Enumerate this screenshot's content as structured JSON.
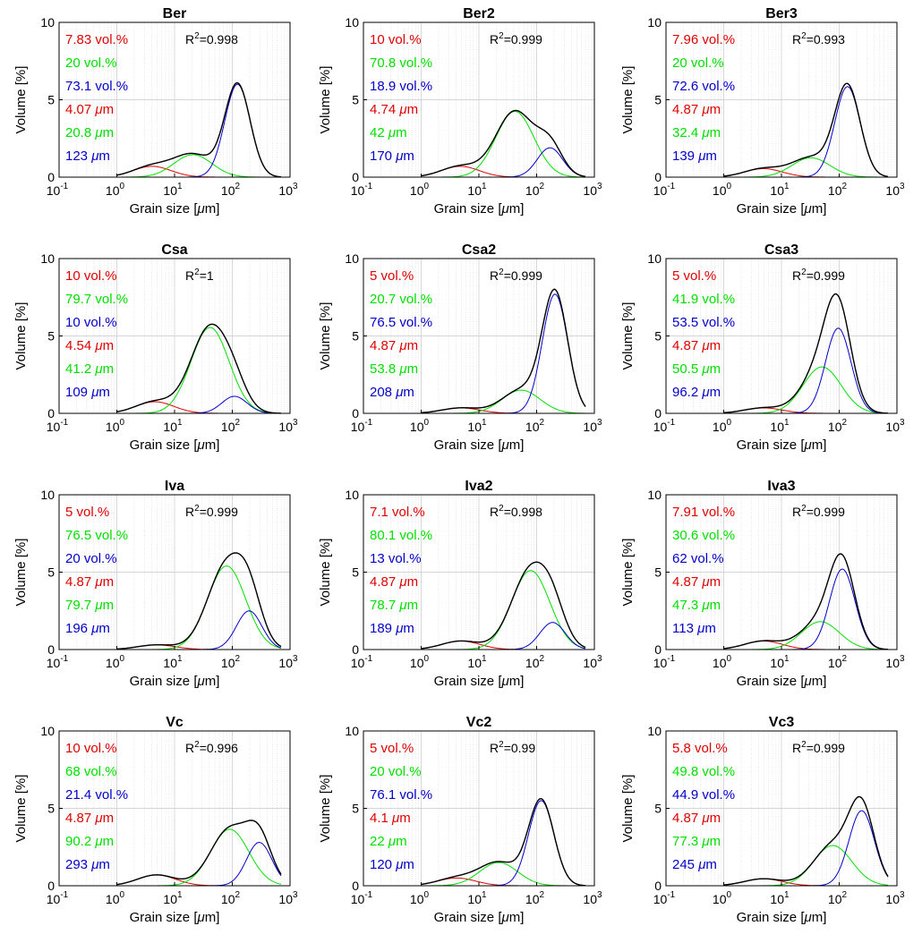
{
  "figure": {
    "xlabel": "Grain size [",
    "xlabel_mu": "μ",
    "xlabel_unit": "m]",
    "ylabel": "Volume [%]",
    "vol_suffix": " vol.%",
    "um_unit": "m",
    "r2_label": "R",
    "r2_sup": "2",
    "x_ticks": [
      {
        "base": "10",
        "exp": "-1"
      },
      {
        "base": "10",
        "exp": "0"
      },
      {
        "base": "10",
        "exp": "1"
      },
      {
        "base": "10",
        "exp": "2"
      },
      {
        "base": "10",
        "exp": "3"
      }
    ],
    "y_ticks": [
      "0",
      "5",
      "10"
    ],
    "colors": {
      "fine": "#e00000",
      "medium": "#00e000",
      "coarse": "#0000cc",
      "total": "#000000"
    }
  },
  "chart_data": [
    {
      "type": "line",
      "title": "Ber",
      "r2": "0.998",
      "xlim": [
        0.1,
        1000
      ],
      "ylim": [
        0,
        10
      ],
      "xscale": "log",
      "components": [
        {
          "vol": "7.83",
          "mode": "4.07"
        },
        {
          "vol": "20",
          "mode": "20.8"
        },
        {
          "vol": "73.1",
          "mode": "123"
        }
      ],
      "peaks": [
        0.7,
        1.45,
        6.0
      ]
    },
    {
      "type": "line",
      "title": "Ber2",
      "r2": "0.999",
      "xlim": [
        0.1,
        1000
      ],
      "ylim": [
        0,
        10
      ],
      "xscale": "log",
      "components": [
        {
          "vol": "10",
          "mode": "4.74"
        },
        {
          "vol": "70.8",
          "mode": "42"
        },
        {
          "vol": "18.9",
          "mode": "170"
        }
      ],
      "peaks": [
        0.7,
        4.25,
        1.9
      ]
    },
    {
      "type": "line",
      "title": "Ber3",
      "r2": "0.993",
      "xlim": [
        0.1,
        1000
      ],
      "ylim": [
        0,
        10
      ],
      "xscale": "log",
      "components": [
        {
          "vol": "7.96",
          "mode": "4.87"
        },
        {
          "vol": "20",
          "mode": "32.4"
        },
        {
          "vol": "72.6",
          "mode": "139"
        }
      ],
      "peaks": [
        0.55,
        1.25,
        5.85
      ]
    },
    {
      "type": "line",
      "title": "Csa",
      "r2": "1",
      "xlim": [
        0.1,
        1000
      ],
      "ylim": [
        0,
        10
      ],
      "xscale": "log",
      "components": [
        {
          "vol": "10",
          "mode": "4.54"
        },
        {
          "vol": "79.7",
          "mode": "41.2"
        },
        {
          "vol": "10",
          "mode": "109"
        }
      ],
      "peaks": [
        0.75,
        5.55,
        1.1
      ]
    },
    {
      "type": "line",
      "title": "Csa2",
      "r2": "0.999",
      "xlim": [
        0.1,
        1000
      ],
      "ylim": [
        0,
        10
      ],
      "xscale": "log",
      "components": [
        {
          "vol": "5",
          "mode": "4.87"
        },
        {
          "vol": "20.7",
          "mode": "53.8"
        },
        {
          "vol": "76.5",
          "mode": "208"
        }
      ],
      "peaks": [
        0.35,
        1.5,
        7.7
      ]
    },
    {
      "type": "line",
      "title": "Csa3",
      "r2": "0.999",
      "xlim": [
        0.1,
        1000
      ],
      "ylim": [
        0,
        10
      ],
      "xscale": "log",
      "components": [
        {
          "vol": "5",
          "mode": "4.87"
        },
        {
          "vol": "41.9",
          "mode": "50.5"
        },
        {
          "vol": "53.5",
          "mode": "96.2"
        }
      ],
      "peaks": [
        0.35,
        3.0,
        5.5
      ]
    },
    {
      "type": "line",
      "title": "Iva",
      "r2": "0.999",
      "xlim": [
        0.1,
        1000
      ],
      "ylim": [
        0,
        10
      ],
      "xscale": "log",
      "components": [
        {
          "vol": "5",
          "mode": "4.87"
        },
        {
          "vol": "76.5",
          "mode": "79.7"
        },
        {
          "vol": "20",
          "mode": "196"
        }
      ],
      "peaks": [
        0.3,
        5.4,
        2.5
      ]
    },
    {
      "type": "line",
      "title": "Iva2",
      "r2": "0.998",
      "xlim": [
        0.1,
        1000
      ],
      "ylim": [
        0,
        10
      ],
      "xscale": "log",
      "components": [
        {
          "vol": "7.1",
          "mode": "4.87"
        },
        {
          "vol": "80.1",
          "mode": "78.7"
        },
        {
          "vol": "13",
          "mode": "189"
        }
      ],
      "peaks": [
        0.55,
        5.1,
        1.75
      ]
    },
    {
      "type": "line",
      "title": "Iva3",
      "r2": "0.999",
      "xlim": [
        0.1,
        1000
      ],
      "ylim": [
        0,
        10
      ],
      "xscale": "log",
      "components": [
        {
          "vol": "7.91",
          "mode": "4.87"
        },
        {
          "vol": "30.6",
          "mode": "47.3"
        },
        {
          "vol": "62",
          "mode": "113"
        }
      ],
      "peaks": [
        0.55,
        1.8,
        5.2
      ]
    },
    {
      "type": "line",
      "title": "Vc",
      "r2": "0.996",
      "xlim": [
        0.1,
        1000
      ],
      "ylim": [
        0,
        10
      ],
      "xscale": "log",
      "components": [
        {
          "vol": "10",
          "mode": "4.87"
        },
        {
          "vol": "68",
          "mode": "90.2"
        },
        {
          "vol": "21.4",
          "mode": "293"
        }
      ],
      "peaks": [
        0.7,
        3.65,
        2.8
      ]
    },
    {
      "type": "line",
      "title": "Vc2",
      "r2": "0.99",
      "xlim": [
        0.1,
        1000
      ],
      "ylim": [
        0,
        10
      ],
      "xscale": "log",
      "components": [
        {
          "vol": "5",
          "mode": "4.1"
        },
        {
          "vol": "20",
          "mode": "22"
        },
        {
          "vol": "76.1",
          "mode": "120"
        }
      ],
      "peaks": [
        0.5,
        1.5,
        5.5
      ]
    },
    {
      "type": "line",
      "title": "Vc3",
      "r2": "0.999",
      "xlim": [
        0.1,
        1000
      ],
      "ylim": [
        0,
        10
      ],
      "xscale": "log",
      "components": [
        {
          "vol": "5.8",
          "mode": "4.87"
        },
        {
          "vol": "49.8",
          "mode": "77.3"
        },
        {
          "vol": "44.9",
          "mode": "245"
        }
      ],
      "peaks": [
        0.45,
        2.6,
        4.85
      ]
    }
  ]
}
